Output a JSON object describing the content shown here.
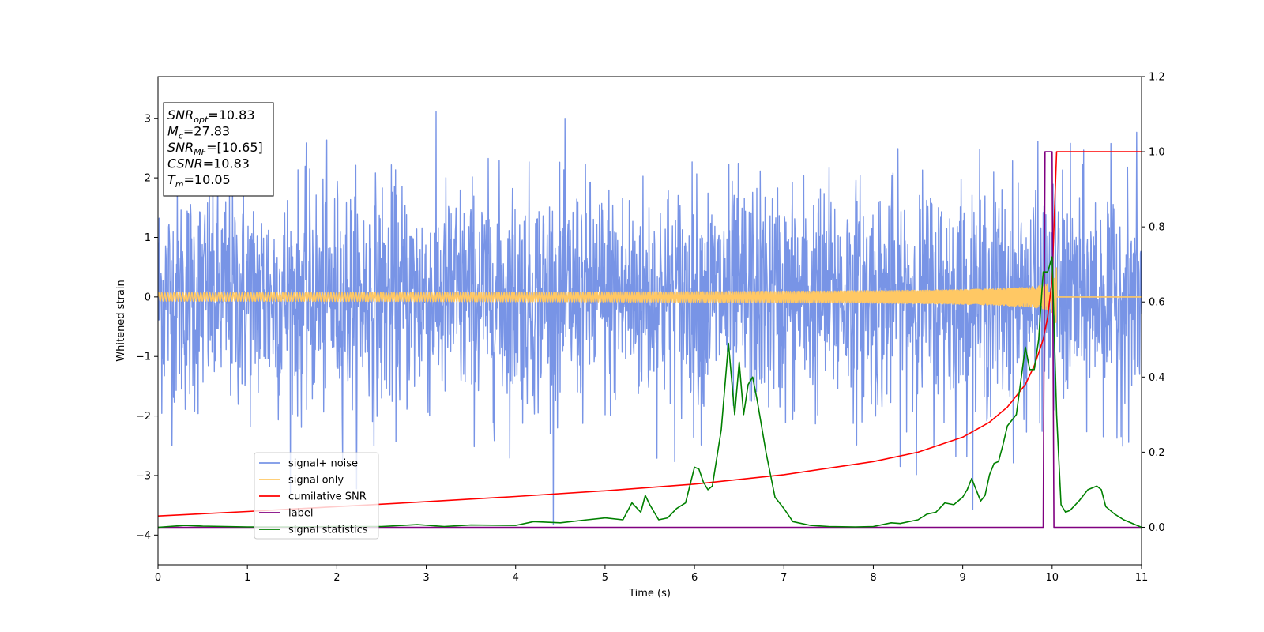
{
  "chart_data": {
    "type": "line",
    "title": "",
    "xlabel": "Time (s)",
    "ylabel": "Whitened strain",
    "xlim": [
      0,
      11
    ],
    "ylim_left": [
      -4.5,
      3.7
    ],
    "ylim_right": [
      -0.1,
      1.2
    ],
    "x_ticks": [
      0,
      1,
      2,
      3,
      4,
      5,
      6,
      7,
      8,
      9,
      10,
      11
    ],
    "y_ticks_left": [
      -4,
      -3,
      -2,
      -1,
      0,
      1,
      2,
      3
    ],
    "y_ticks_right": [
      0.0,
      0.2,
      0.4,
      0.6,
      0.8,
      1.0,
      1.2
    ],
    "legend_position": "lower-left",
    "colors": {
      "signal_noise": "#7894e6",
      "signal_only": "#ffc864",
      "cumulative_snr": "#ff0000",
      "label": "#800080",
      "signal_statistics": "#008000"
    },
    "series": [
      {
        "name": "signal+ noise",
        "axis": "left",
        "kind": "noise",
        "mean": 0.0,
        "std": 0.95,
        "peak_max": 3.35,
        "peak_min": -4.15,
        "x_range": [
          0,
          11
        ]
      },
      {
        "name": "signal only",
        "axis": "left",
        "kind": "chirp",
        "merger_time": 10.05,
        "peak_amplitude": 0.55,
        "x_range": [
          0,
          11
        ]
      },
      {
        "name": "cumilative SNR",
        "axis": "right",
        "x": [
          0,
          1,
          2,
          3,
          4,
          5,
          6,
          7,
          8,
          8.5,
          9,
          9.3,
          9.5,
          9.7,
          9.8,
          9.9,
          9.95,
          10.0,
          10.05,
          10.1,
          11
        ],
        "y": [
          0.03,
          0.042,
          0.055,
          0.068,
          0.082,
          0.097,
          0.115,
          0.14,
          0.175,
          0.2,
          0.24,
          0.28,
          0.32,
          0.38,
          0.43,
          0.5,
          0.56,
          0.66,
          1.0,
          1.0,
          1.0
        ]
      },
      {
        "name": "label",
        "axis": "right",
        "x": [
          0,
          9.9,
          9.92,
          10.0,
          10.02,
          11
        ],
        "y": [
          0,
          0,
          1.0,
          1.0,
          0,
          0
        ]
      },
      {
        "name": "signal statistics",
        "axis": "right",
        "x": [
          0,
          0.3,
          0.5,
          1.0,
          1.5,
          2.0,
          2.5,
          2.9,
          3.2,
          3.5,
          4.0,
          4.2,
          4.5,
          4.8,
          5.0,
          5.2,
          5.3,
          5.4,
          5.45,
          5.5,
          5.6,
          5.7,
          5.8,
          5.9,
          6.0,
          6.05,
          6.1,
          6.15,
          6.2,
          6.3,
          6.38,
          6.45,
          6.5,
          6.55,
          6.6,
          6.65,
          6.7,
          6.8,
          6.9,
          7.0,
          7.1,
          7.3,
          7.5,
          7.8,
          8.0,
          8.2,
          8.3,
          8.5,
          8.6,
          8.7,
          8.8,
          8.9,
          9.0,
          9.05,
          9.1,
          9.15,
          9.2,
          9.25,
          9.3,
          9.35,
          9.4,
          9.45,
          9.5,
          9.6,
          9.7,
          9.75,
          9.8,
          9.85,
          9.9,
          9.95,
          10.0,
          10.05,
          10.1,
          10.15,
          10.2,
          10.3,
          10.4,
          10.5,
          10.55,
          10.6,
          10.7,
          10.8,
          10.9,
          11.0
        ],
        "y": [
          0.0,
          0.005,
          0.003,
          0.001,
          0.001,
          0.002,
          0.002,
          0.007,
          0.002,
          0.006,
          0.005,
          0.015,
          0.012,
          0.02,
          0.025,
          0.02,
          0.065,
          0.04,
          0.085,
          0.06,
          0.02,
          0.025,
          0.05,
          0.065,
          0.16,
          0.155,
          0.12,
          0.1,
          0.11,
          0.26,
          0.49,
          0.3,
          0.44,
          0.3,
          0.38,
          0.4,
          0.34,
          0.2,
          0.08,
          0.05,
          0.015,
          0.005,
          0.002,
          0.001,
          0.002,
          0.012,
          0.01,
          0.02,
          0.035,
          0.04,
          0.065,
          0.06,
          0.08,
          0.1,
          0.13,
          0.1,
          0.07,
          0.085,
          0.14,
          0.17,
          0.175,
          0.22,
          0.27,
          0.3,
          0.48,
          0.42,
          0.42,
          0.5,
          0.68,
          0.68,
          0.72,
          0.3,
          0.06,
          0.04,
          0.045,
          0.07,
          0.1,
          0.11,
          0.1,
          0.055,
          0.035,
          0.02,
          0.01,
          0.0
        ]
      }
    ]
  },
  "annotation": {
    "lines": [
      {
        "var": "SNR",
        "sub": "opt",
        "value": "=10.83"
      },
      {
        "var": "M",
        "sub": "c",
        "value": "=27.83"
      },
      {
        "var": "SNR",
        "sub": "MF",
        "value": "=[10.65]"
      },
      {
        "var": "CSNR",
        "sub": "",
        "value": "=10.83"
      },
      {
        "var": "T",
        "sub": "m",
        "value": "=10.05"
      }
    ]
  },
  "legend": {
    "items": [
      "signal+ noise",
      "signal only",
      "cumilative SNR",
      "label",
      "signal statistics"
    ]
  }
}
